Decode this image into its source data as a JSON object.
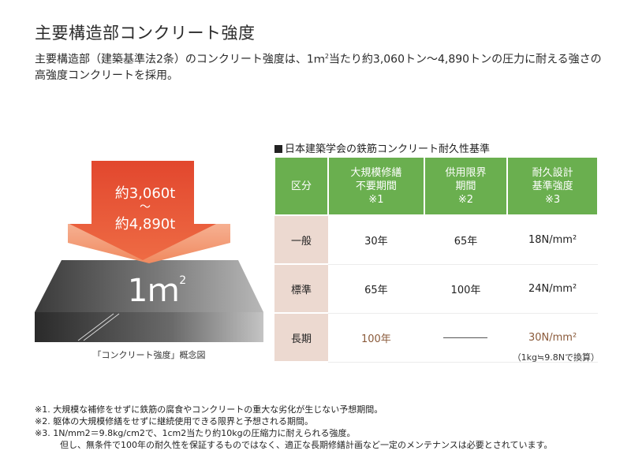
{
  "title": "主要構造部コンクリート強度",
  "lead": {
    "text_before": "主要構造部（建築基準法2条）のコンクリート強度は、1ｍ",
    "sup": "2",
    "text_after": "当たり約3,060トン〜4,890トンの圧力に耐える強さの高強度コンクリートを採用。"
  },
  "illustration": {
    "arrow_line1": "約3,060t",
    "arrow_line2": "〜",
    "arrow_line3": "約4,890t",
    "area_value": "1ｍ",
    "area_sup": "2",
    "caption": "「コンクリート強度」概念図",
    "colors": {
      "arrow_top": "#e2472e",
      "arrow_head": "#f4a07b",
      "slab_dark": "#1e1e1e",
      "slab_light": "#8a8a8a"
    }
  },
  "table": {
    "title": "日本建築学会の鉄筋コンクリート耐久性基準",
    "headers": [
      {
        "lines": [
          "区分"
        ]
      },
      {
        "lines": [
          "大規模修繕",
          "不要期間",
          "※1"
        ]
      },
      {
        "lines": [
          "供用限界",
          "期間",
          "※2"
        ]
      },
      {
        "lines": [
          "耐久設計",
          "基準強度",
          "※3"
        ]
      }
    ],
    "rows": [
      {
        "label": "一般",
        "cells": [
          "30年",
          "65年",
          "18N/mm²"
        ],
        "highlight": false
      },
      {
        "label": "標準",
        "cells": [
          "65年",
          "100年",
          "24N/mm²"
        ],
        "highlight": false
      },
      {
        "label": "長期",
        "cells": [
          "100年",
          "",
          "30N/mm²"
        ],
        "highlight": true
      }
    ],
    "unit_note": "（1kg≒9.8Nで換算）",
    "colors": {
      "header_bg": "#6aaf4f",
      "rowhead_bg": "#ecd9d0",
      "highlight_text": "#8a5a3a"
    }
  },
  "notes": [
    "※1. 大規模な補修をせずに鉄筋の腐食やコンクリートの重大な劣化が生じない予想期間。",
    "※2. 躯体の大規模修繕をせずに継続使用できる限界と予想される期間。",
    "※3. 1N/mm2＝9.8kg/cm2で、1cm2当たり約10kgの圧縮力に耐えられる強度。",
    "但し、無条件で100年の耐久性を保証するものではなく、適正な長期修繕計画など一定のメンテナンスは必要とされています。"
  ]
}
